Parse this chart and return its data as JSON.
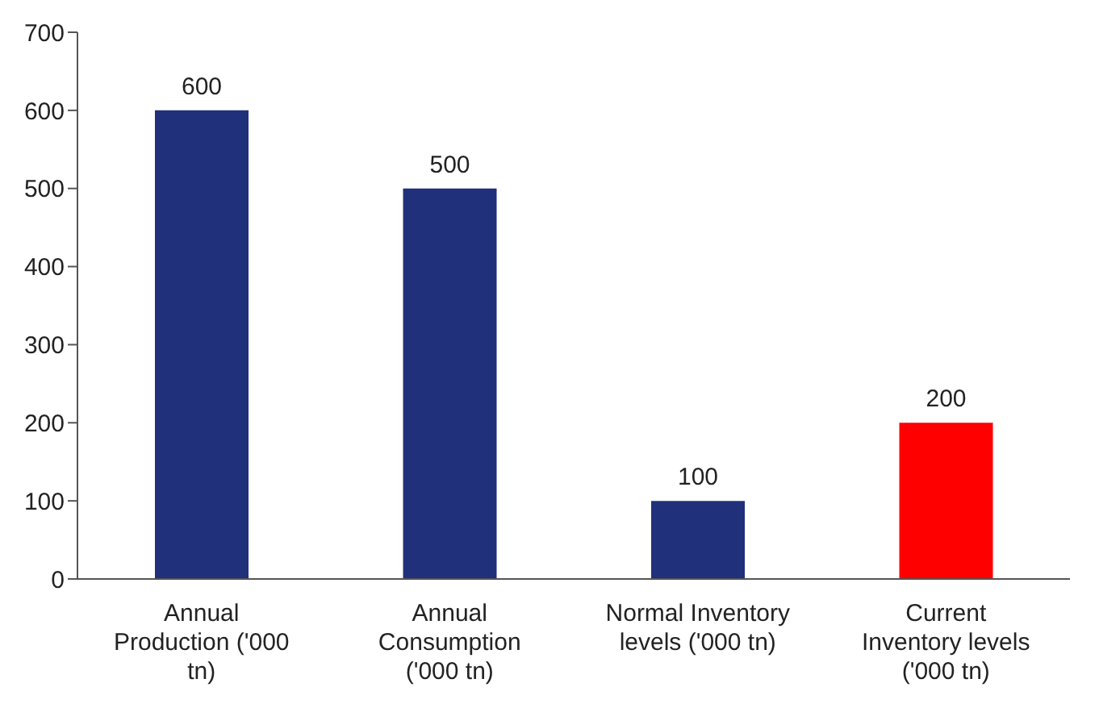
{
  "chart_data": {
    "type": "bar",
    "categories": [
      "Annual Production ('000 tn)",
      "Annual Consumption ('000 tn)",
      "Normal Inventory levels ('000 tn)",
      "Current Inventory levels ('000 tn)"
    ],
    "values": [
      600,
      500,
      100,
      200
    ],
    "colors": [
      "#21307b",
      "#21307b",
      "#21307b",
      "#ff0000"
    ],
    "ylim": [
      0,
      700
    ],
    "yticks": [
      0,
      100,
      200,
      300,
      400,
      500,
      600,
      700
    ],
    "grid": false,
    "legend": false,
    "data_labels": true
  }
}
